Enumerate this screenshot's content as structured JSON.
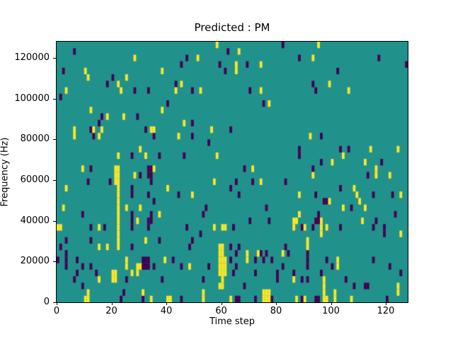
{
  "figure": {
    "title": "Predicted : PM",
    "xlabel": "Time step",
    "ylabel": "Frequency (Hz)"
  },
  "chart_data": {
    "type": "heatmap",
    "title": "Predicted : PM",
    "xlabel": "Time step",
    "ylabel": "Frequency (Hz)",
    "x_range": [
      0,
      128
    ],
    "y_range": [
      0,
      128000
    ],
    "x_ticks": [
      0,
      20,
      40,
      60,
      80,
      100,
      120
    ],
    "y_ticks": [
      0,
      20000,
      40000,
      60000,
      80000,
      100000,
      120000
    ],
    "grid": {
      "time_steps": 128,
      "freq_bins": 40,
      "hz_per_bin": 3200
    },
    "colors": {
      "background": "#21918c",
      "low": "#440154",
      "high": "#fde725"
    },
    "legend_position": "none",
    "description": "Binary prediction mask over spectrogram grid; teal=neutral, purple=low class, yellow=high class. Cells given as [time_step, freq_bin] with freq_bin 0 at 0 Hz (3200 Hz per bin).",
    "cells_low": [
      [
        6,
        38
      ],
      [
        2,
        35
      ],
      [
        20,
        34
      ],
      [
        18,
        33
      ],
      [
        28,
        32
      ],
      [
        33,
        32
      ],
      [
        1,
        31
      ],
      [
        16,
        28
      ],
      [
        29,
        28
      ],
      [
        40,
        30
      ],
      [
        15,
        27
      ],
      [
        32,
        26
      ],
      [
        12,
        26
      ],
      [
        82,
        39
      ],
      [
        62,
        38
      ],
      [
        47,
        37
      ],
      [
        45,
        36
      ],
      [
        59,
        36
      ],
      [
        69,
        36
      ],
      [
        61,
        35
      ],
      [
        43,
        33
      ],
      [
        49,
        32
      ],
      [
        70,
        32
      ],
      [
        75,
        30
      ],
      [
        49,
        27
      ],
      [
        63,
        26
      ],
      [
        88,
        37
      ],
      [
        117,
        37
      ],
      [
        127,
        36
      ],
      [
        102,
        35
      ],
      [
        93,
        33
      ],
      [
        94,
        32
      ],
      [
        13,
        25
      ],
      [
        35,
        25
      ],
      [
        37,
        22
      ],
      [
        27,
        22
      ],
      [
        12,
        20
      ],
      [
        34,
        20
      ],
      [
        33,
        20
      ],
      [
        34,
        19
      ],
      [
        33,
        19
      ],
      [
        30,
        19
      ],
      [
        34,
        18
      ],
      [
        11,
        18
      ],
      [
        19,
        18
      ],
      [
        27,
        17
      ],
      [
        27,
        16
      ],
      [
        33,
        16
      ],
      [
        35,
        15
      ],
      [
        9,
        13
      ],
      [
        49,
        25
      ],
      [
        55,
        24
      ],
      [
        46,
        22
      ],
      [
        68,
        20
      ],
      [
        65,
        18
      ],
      [
        71,
        18
      ],
      [
        83,
        18
      ],
      [
        63,
        17
      ],
      [
        66,
        16
      ],
      [
        44,
        16
      ],
      [
        54,
        14
      ],
      [
        76,
        14
      ],
      [
        96,
        25
      ],
      [
        88,
        23
      ],
      [
        88,
        22
      ],
      [
        103,
        23
      ],
      [
        106,
        23
      ],
      [
        96,
        21
      ],
      [
        118,
        21
      ],
      [
        93,
        20
      ],
      [
        113,
        19
      ],
      [
        103,
        17
      ],
      [
        94,
        16
      ],
      [
        115,
        16
      ],
      [
        122,
        16
      ],
      [
        97,
        15
      ],
      [
        98,
        15
      ],
      [
        95,
        13
      ],
      [
        107,
        14
      ],
      [
        27,
        13
      ],
      [
        34,
        13
      ],
      [
        34,
        12
      ],
      [
        33,
        12
      ],
      [
        33,
        11
      ],
      [
        12,
        11
      ],
      [
        17,
        11
      ],
      [
        12,
        9
      ],
      [
        3,
        9
      ],
      [
        1,
        8
      ],
      [
        27,
        12
      ],
      [
        27,
        11
      ],
      [
        27,
        8
      ],
      [
        3,
        7
      ],
      [
        3,
        6
      ],
      [
        3,
        5
      ],
      [
        0,
        6
      ],
      [
        7,
        6
      ],
      [
        9,
        5
      ],
      [
        12,
        5
      ],
      [
        14,
        4
      ],
      [
        7,
        4
      ],
      [
        25,
        3
      ],
      [
        6,
        3
      ],
      [
        9,
        2
      ],
      [
        24,
        1
      ],
      [
        23,
        0
      ],
      [
        31,
        6
      ],
      [
        32,
        6
      ],
      [
        33,
        6
      ],
      [
        31,
        5
      ],
      [
        32,
        5
      ],
      [
        33,
        5
      ],
      [
        35,
        5
      ],
      [
        38,
        3
      ],
      [
        42,
        6
      ],
      [
        37,
        9
      ],
      [
        53,
        13
      ],
      [
        70,
        12
      ],
      [
        77,
        12
      ],
      [
        47,
        11
      ],
      [
        64,
        11
      ],
      [
        52,
        10
      ],
      [
        49,
        9
      ],
      [
        48,
        8
      ],
      [
        63,
        8
      ],
      [
        66,
        8
      ],
      [
        83,
        8
      ],
      [
        65,
        7
      ],
      [
        74,
        7
      ],
      [
        76,
        7
      ],
      [
        84,
        7
      ],
      [
        63,
        6
      ],
      [
        72,
        6
      ],
      [
        75,
        6
      ],
      [
        78,
        6
      ],
      [
        45,
        5
      ],
      [
        55,
        5
      ],
      [
        65,
        5
      ],
      [
        82,
        5
      ],
      [
        53,
        3
      ],
      [
        64,
        4
      ],
      [
        72,
        4
      ],
      [
        80,
        4
      ],
      [
        80,
        3
      ],
      [
        68,
        2
      ],
      [
        65,
        0
      ],
      [
        66,
        0
      ],
      [
        72,
        0
      ],
      [
        45,
        0
      ],
      [
        31,
        0
      ],
      [
        78,
        0
      ],
      [
        123,
        13
      ],
      [
        94,
        12
      ],
      [
        95,
        12
      ],
      [
        116,
        12
      ],
      [
        89,
        11
      ],
      [
        93,
        11
      ],
      [
        103,
        11
      ],
      [
        115,
        11
      ],
      [
        119,
        11
      ],
      [
        119,
        10
      ],
      [
        91,
        7
      ],
      [
        91,
        6
      ],
      [
        91,
        5
      ],
      [
        98,
        6
      ],
      [
        100,
        5
      ],
      [
        115,
        6
      ],
      [
        121,
        5
      ],
      [
        125,
        4
      ],
      [
        86,
        4
      ],
      [
        89,
        3
      ],
      [
        91,
        3
      ],
      [
        96,
        4
      ],
      [
        105,
        3
      ],
      [
        108,
        2
      ],
      [
        112,
        2
      ],
      [
        113,
        2
      ],
      [
        89,
        0
      ],
      [
        94,
        0
      ],
      [
        95,
        0
      ],
      [
        120,
        0
      ]
    ],
    "cells_high": [
      [
        28,
        37
      ],
      [
        10,
        35
      ],
      [
        38,
        35
      ],
      [
        11,
        34
      ],
      [
        25,
        34
      ],
      [
        22,
        33
      ],
      [
        23,
        32
      ],
      [
        3,
        32
      ],
      [
        12,
        29
      ],
      [
        38,
        29
      ],
      [
        18,
        28
      ],
      [
        24,
        28
      ],
      [
        13,
        26
      ],
      [
        35,
        26
      ],
      [
        6,
        25
      ],
      [
        58,
        39
      ],
      [
        66,
        38
      ],
      [
        51,
        37
      ],
      [
        74,
        36
      ],
      [
        65,
        36
      ],
      [
        65,
        35
      ],
      [
        45,
        33
      ],
      [
        43,
        32
      ],
      [
        52,
        32
      ],
      [
        74,
        32
      ],
      [
        77,
        30
      ],
      [
        46,
        27
      ],
      [
        56,
        26
      ],
      [
        95,
        39
      ],
      [
        93,
        37
      ],
      [
        99,
        33
      ],
      [
        106,
        32
      ],
      [
        6,
        26
      ],
      [
        16,
        26
      ],
      [
        34,
        26
      ],
      [
        15,
        25
      ],
      [
        30,
        23
      ],
      [
        22,
        22
      ],
      [
        32,
        22
      ],
      [
        9,
        20
      ],
      [
        35,
        20
      ],
      [
        3,
        17
      ],
      [
        40,
        17
      ],
      [
        2,
        14
      ],
      [
        30,
        14
      ],
      [
        25,
        14
      ],
      [
        28,
        19
      ],
      [
        56,
        26
      ],
      [
        44,
        25
      ],
      [
        58,
        22
      ],
      [
        71,
        20
      ],
      [
        57,
        18
      ],
      [
        74,
        18
      ],
      [
        49,
        16
      ],
      [
        92,
        25
      ],
      [
        114,
        23
      ],
      [
        124,
        23
      ],
      [
        104,
        22
      ],
      [
        100,
        21
      ],
      [
        112,
        21
      ],
      [
        116,
        20
      ],
      [
        93,
        19
      ],
      [
        116,
        19
      ],
      [
        121,
        19
      ],
      [
        108,
        17
      ],
      [
        88,
        16
      ],
      [
        109,
        16
      ],
      [
        125,
        16
      ],
      [
        99,
        15
      ],
      [
        110,
        15
      ],
      [
        88,
        13
      ],
      [
        104,
        14
      ],
      [
        112,
        14
      ],
      [
        21,
        20
      ],
      [
        22,
        20
      ],
      [
        21,
        19
      ],
      [
        22,
        19
      ],
      [
        21,
        18
      ],
      [
        22,
        18
      ],
      [
        22,
        17
      ],
      [
        22,
        16
      ],
      [
        22,
        15
      ],
      [
        22,
        14
      ],
      [
        22,
        13
      ],
      [
        22,
        12
      ],
      [
        22,
        11
      ],
      [
        22,
        10
      ],
      [
        22,
        9
      ],
      [
        22,
        8
      ],
      [
        0,
        11
      ],
      [
        1,
        11
      ],
      [
        15,
        11
      ],
      [
        15,
        8
      ],
      [
        18,
        8
      ],
      [
        25,
        6
      ],
      [
        25,
        5
      ],
      [
        27,
        4
      ],
      [
        29,
        5
      ],
      [
        30,
        5
      ],
      [
        29,
        4
      ],
      [
        39,
        6
      ],
      [
        15,
        3
      ],
      [
        20,
        4
      ],
      [
        21,
        4
      ],
      [
        20,
        3
      ],
      [
        21,
        3
      ],
      [
        11,
        1
      ],
      [
        31,
        1
      ],
      [
        29,
        12
      ],
      [
        37,
        13
      ],
      [
        32,
        9
      ],
      [
        40,
        0
      ],
      [
        34,
        0
      ],
      [
        10,
        0
      ],
      [
        11,
        0
      ],
      [
        41,
        0
      ],
      [
        57,
        11
      ],
      [
        60,
        11
      ],
      [
        61,
        11
      ],
      [
        59,
        8
      ],
      [
        60,
        8
      ],
      [
        59,
        7
      ],
      [
        60,
        7
      ],
      [
        59,
        6
      ],
      [
        60,
        6
      ],
      [
        61,
        6
      ],
      [
        59,
        5
      ],
      [
        60,
        5
      ],
      [
        61,
        5
      ],
      [
        59,
        4
      ],
      [
        60,
        4
      ],
      [
        61,
        4
      ],
      [
        60,
        3
      ],
      [
        59,
        2
      ],
      [
        60,
        2
      ],
      [
        69,
        7
      ],
      [
        69,
        6
      ],
      [
        73,
        7
      ],
      [
        82,
        7
      ],
      [
        48,
        5
      ],
      [
        53,
        1
      ],
      [
        53,
        0
      ],
      [
        63,
        0
      ],
      [
        75,
        1
      ],
      [
        76,
        1
      ],
      [
        77,
        1
      ],
      [
        75,
        0
      ],
      [
        76,
        0
      ],
      [
        77,
        0
      ],
      [
        86,
        12
      ],
      [
        87,
        12
      ],
      [
        96,
        12
      ],
      [
        111,
        12
      ],
      [
        86,
        11
      ],
      [
        90,
        11
      ],
      [
        96,
        11
      ],
      [
        98,
        11
      ],
      [
        125,
        10
      ],
      [
        91,
        9
      ],
      [
        91,
        8
      ],
      [
        96,
        10
      ],
      [
        102,
        6
      ],
      [
        102,
        5
      ],
      [
        86,
        3
      ],
      [
        97,
        3
      ],
      [
        97,
        2
      ],
      [
        97,
        1
      ],
      [
        97,
        0
      ],
      [
        98,
        0
      ],
      [
        90,
        0
      ],
      [
        101,
        1
      ],
      [
        101,
        0
      ],
      [
        124,
        2
      ],
      [
        124,
        1
      ],
      [
        87,
        0
      ],
      [
        107,
        0
      ]
    ]
  }
}
